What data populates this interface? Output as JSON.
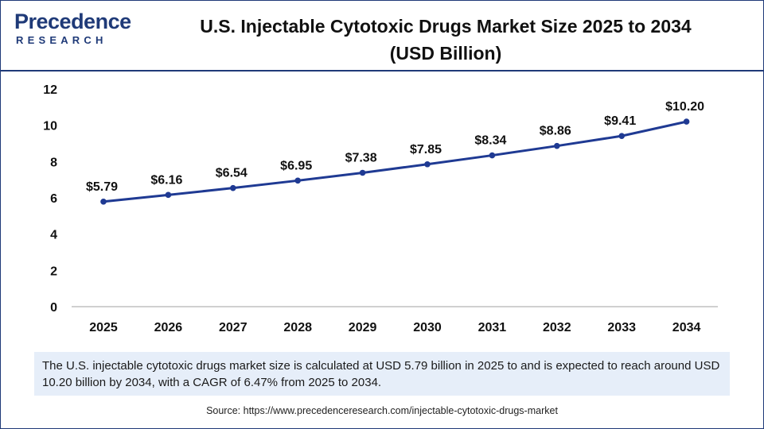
{
  "logo": {
    "main": "Precedence",
    "sub": "RESEARCH"
  },
  "title_line1": "U.S. Injectable Cytotoxic Drugs Market Size 2025 to 2034",
  "title_line2": "(USD Billion)",
  "chart_data": {
    "type": "line",
    "title": "U.S. Injectable Cytotoxic Drugs Market Size 2025 to 2034 (USD Billion)",
    "xlabel": "",
    "ylabel": "",
    "categories": [
      "2025",
      "2026",
      "2027",
      "2028",
      "2029",
      "2030",
      "2031",
      "2032",
      "2033",
      "2034"
    ],
    "series": [
      {
        "name": "Market Size (USD Billion)",
        "values": [
          5.79,
          6.16,
          6.54,
          6.95,
          7.38,
          7.85,
          8.34,
          8.86,
          9.41,
          10.2
        ],
        "labels": [
          "$5.79",
          "$6.16",
          "$6.54",
          "$6.95",
          "$7.38",
          "$7.85",
          "$8.34",
          "$8.86",
          "$9.41",
          "$10.20"
        ],
        "color": "#1f3a93"
      }
    ],
    "ylim": [
      0,
      12
    ],
    "yticks": [
      0,
      2,
      4,
      6,
      8,
      10,
      12
    ],
    "grid": false,
    "legend": "none"
  },
  "caption": "The U.S. injectable cytotoxic drugs market size is calculated at USD 5.79 billion in 2025 to and is expected to reach around USD 10.20 billion by 2034, with a CAGR of 6.47% from 2025 to 2034.",
  "source": "Source: https://www.precedenceresearch.com/injectable-cytotoxic-drugs-market",
  "colors": {
    "brand": "#1f3a78",
    "line": "#1f3a93",
    "caption_bg": "#e6eef9"
  }
}
